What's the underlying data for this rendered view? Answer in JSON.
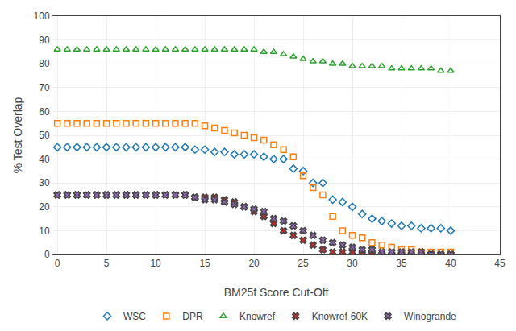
{
  "chart_data": {
    "type": "scatter",
    "xlabel": "BM25f Score Cut-Off",
    "ylabel": "% Test Overlap",
    "xlim": [
      -0.5,
      45
    ],
    "ylim": [
      0,
      100
    ],
    "xticks": [
      0,
      5,
      10,
      15,
      20,
      25,
      30,
      35,
      40,
      45
    ],
    "yticks": [
      0,
      10,
      20,
      30,
      40,
      50,
      60,
      70,
      80,
      90,
      100
    ],
    "grid": true,
    "legend": "bottom",
    "x": [
      0,
      1,
      2,
      3,
      4,
      5,
      6,
      7,
      8,
      9,
      10,
      11,
      12,
      13,
      14,
      15,
      16,
      17,
      18,
      19,
      20,
      21,
      22,
      23,
      24,
      25,
      26,
      27,
      28,
      29,
      30,
      31,
      32,
      33,
      34,
      35,
      36,
      37,
      38,
      39,
      40
    ],
    "series": [
      {
        "name": "WSC",
        "marker": "diamond",
        "values": [
          45,
          45,
          45,
          45,
          45,
          45,
          45,
          45,
          45,
          45,
          45,
          45,
          45,
          45,
          44,
          44,
          43,
          43,
          42,
          42,
          42,
          41,
          40,
          40,
          36,
          35,
          30,
          30,
          23,
          22,
          20,
          17,
          15,
          14,
          13,
          12,
          12,
          11,
          11,
          11,
          10
        ]
      },
      {
        "name": "DPR",
        "marker": "square",
        "values": [
          55,
          55,
          55,
          55,
          55,
          55,
          55,
          55,
          55,
          55,
          55,
          55,
          55,
          55,
          55,
          54,
          53,
          52,
          51,
          50,
          49,
          48,
          46,
          44,
          41,
          33,
          28,
          25,
          16,
          10,
          8,
          7,
          5,
          4,
          3,
          2,
          2,
          1,
          1,
          1,
          1
        ]
      },
      {
        "name": "Knowref",
        "marker": "triangle",
        "values": [
          86,
          86,
          86,
          86,
          86,
          86,
          86,
          86,
          86,
          86,
          86,
          86,
          86,
          86,
          86,
          86,
          86,
          86,
          86,
          86,
          86,
          85,
          85,
          84,
          83,
          82,
          81,
          81,
          80,
          80,
          79,
          79,
          79,
          79,
          78,
          78,
          78,
          78,
          78,
          77,
          77
        ]
      },
      {
        "name": "Knowref-60K",
        "marker": "x",
        "values": [
          25,
          25,
          25,
          25,
          25,
          25,
          25,
          25,
          25,
          25,
          25,
          25,
          25,
          25,
          24,
          24,
          24,
          23,
          22,
          20,
          18,
          16,
          13,
          10,
          8,
          6,
          4,
          2,
          1,
          1,
          1,
          0,
          0,
          0,
          0,
          0,
          0,
          0,
          0,
          0,
          0
        ]
      },
      {
        "name": "Winogrande",
        "marker": "x",
        "values": [
          25,
          25,
          25,
          25,
          25,
          25,
          25,
          25,
          25,
          25,
          25,
          25,
          25,
          25,
          24,
          23,
          23,
          22,
          21,
          20,
          19,
          18,
          15,
          14,
          12,
          10,
          8,
          6,
          5,
          4,
          3,
          2,
          2,
          1,
          1,
          1,
          1,
          1,
          0,
          0,
          0
        ]
      }
    ]
  }
}
